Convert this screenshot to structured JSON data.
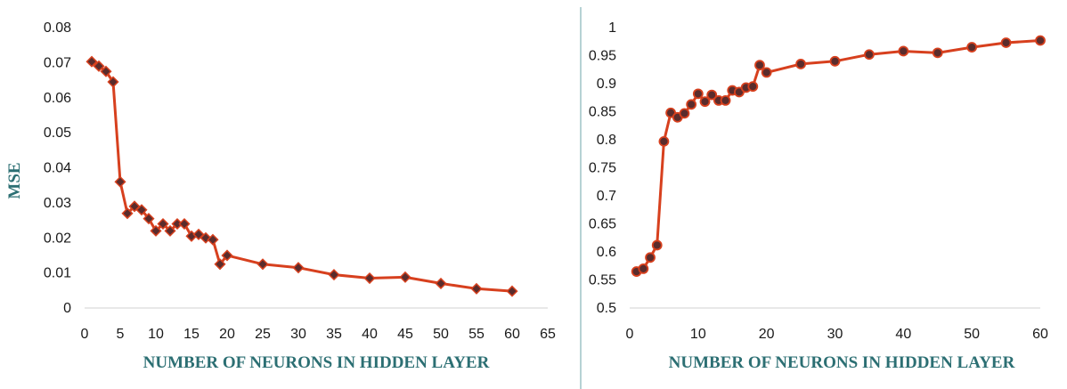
{
  "chart_data": [
    {
      "type": "line",
      "title": "",
      "xlabel": "NUMBER OF NEURONS IN HIDDEN LAYER",
      "ylabel": "MSE",
      "xlim": [
        0,
        65
      ],
      "ylim": [
        0,
        0.08
      ],
      "xticks": [
        "0",
        "5",
        "10",
        "15",
        "20",
        "25",
        "30",
        "35",
        "40",
        "45",
        "50",
        "55",
        "60",
        "65"
      ],
      "yticks": [
        "0",
        "0.01",
        "0.02",
        "0.03",
        "0.04",
        "0.05",
        "0.06",
        "0.07",
        "0.08"
      ],
      "marker": "diamond",
      "line_color": "#d7401e",
      "marker_color": "#5a2c2c",
      "grid": false,
      "series": [
        {
          "x": [
            1,
            2,
            3,
            4,
            5,
            6,
            7,
            8,
            9,
            10,
            11,
            12,
            13,
            14,
            15,
            16,
            17,
            18,
            19,
            20,
            25,
            30,
            35,
            40,
            45,
            50,
            55,
            60
          ],
          "y": [
            0.0703,
            0.069,
            0.0675,
            0.0645,
            0.036,
            0.027,
            0.029,
            0.028,
            0.0255,
            0.022,
            0.024,
            0.022,
            0.024,
            0.024,
            0.0205,
            0.021,
            0.02,
            0.0195,
            0.0125,
            0.015,
            0.0125,
            0.0115,
            0.0095,
            0.0085,
            0.0088,
            0.007,
            0.0055,
            0.0048
          ]
        }
      ]
    },
    {
      "type": "line",
      "title": "",
      "xlabel": "NUMBER OF NEURONS IN HIDDEN LAYER",
      "ylabel": "",
      "xlim": [
        0,
        60
      ],
      "ylim": [
        0.5,
        1
      ],
      "xticks": [
        "0",
        "10",
        "20",
        "30",
        "40",
        "50",
        "60"
      ],
      "yticks": [
        "0.5",
        "0.55",
        "0.6",
        "0.65",
        "0.7",
        "0.75",
        "0.8",
        "0.85",
        "0.9",
        "0.95",
        "1"
      ],
      "marker": "circle",
      "line_color": "#d7401e",
      "marker_color": "#5a2c2c",
      "grid": false,
      "series": [
        {
          "x": [
            1,
            2,
            3,
            4,
            5,
            6,
            7,
            8,
            9,
            10,
            11,
            12,
            13,
            14,
            15,
            16,
            17,
            18,
            19,
            20,
            25,
            30,
            35,
            40,
            45,
            50,
            55,
            60
          ],
          "y": [
            0.565,
            0.57,
            0.59,
            0.612,
            0.797,
            0.848,
            0.84,
            0.847,
            0.863,
            0.882,
            0.868,
            0.88,
            0.87,
            0.87,
            0.888,
            0.885,
            0.893,
            0.895,
            0.933,
            0.92,
            0.935,
            0.94,
            0.952,
            0.958,
            0.955,
            0.965,
            0.973,
            0.977
          ]
        }
      ]
    }
  ]
}
